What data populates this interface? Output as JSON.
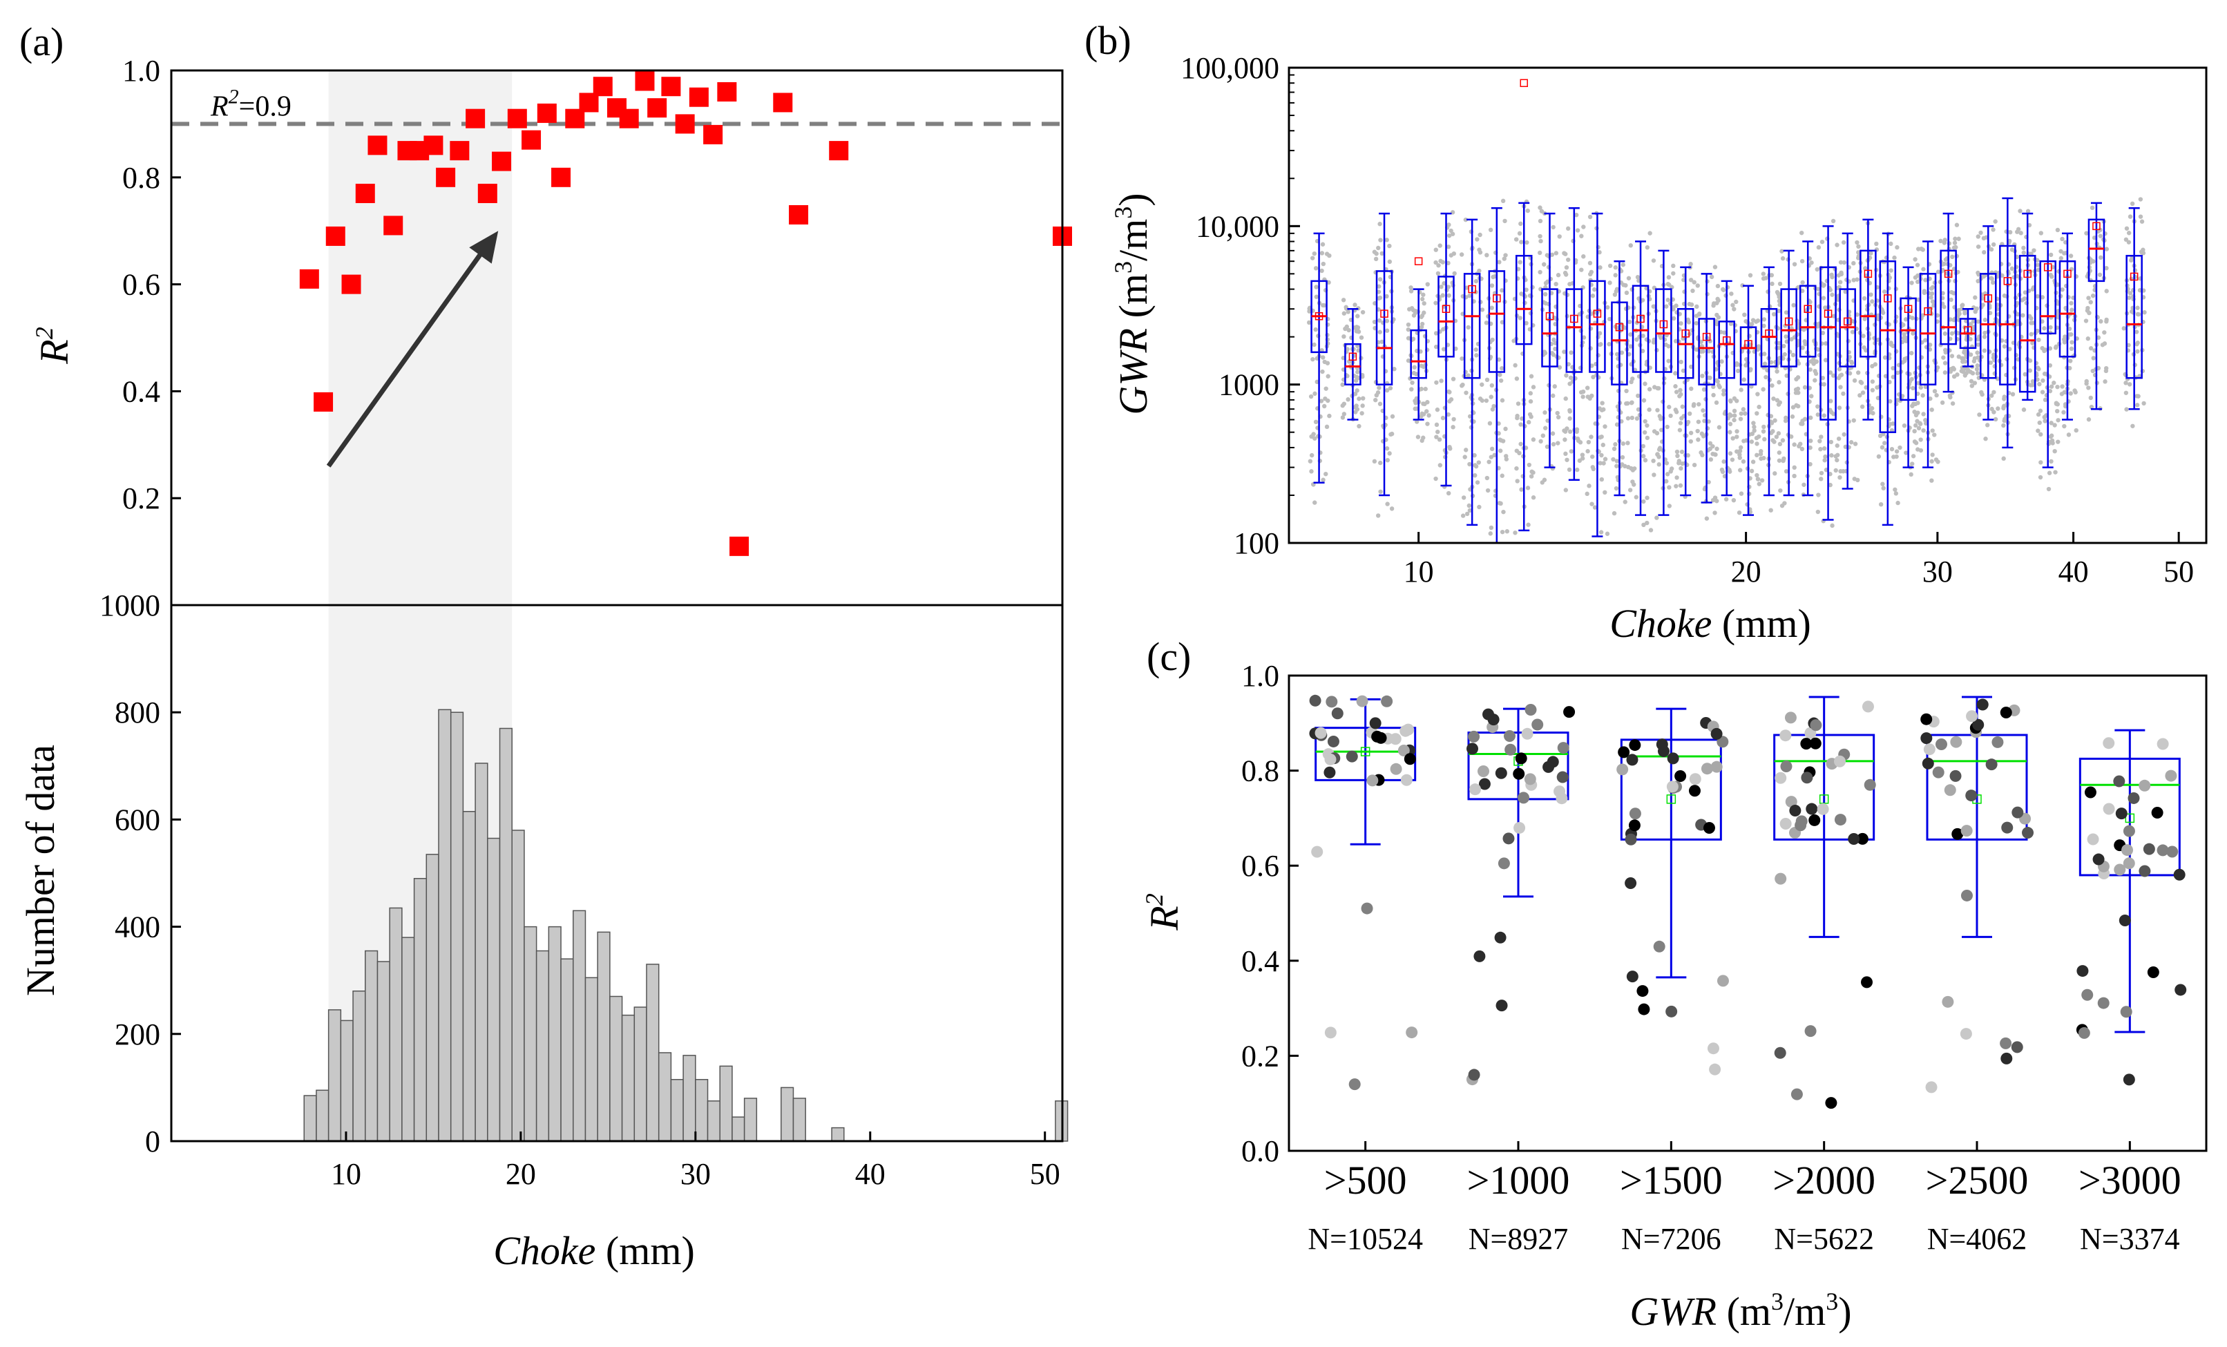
{
  "colors": {
    "scatter": "#ff0000",
    "shade": "#f2f2f2",
    "hist": "#c8c8c8",
    "box": "#0000e6",
    "median_b": "#ff0000",
    "median_c": "#00e000",
    "ref_line": "#808080",
    "arrow": "#333333"
  },
  "chart_data": [
    {
      "panel": "(a)",
      "type": "scatter",
      "ylabel": "R",
      "ylabel_sup": "2",
      "ylim": [
        0,
        1.0
      ],
      "yticks": [
        "0.2",
        "0.4",
        "0.6",
        "0.8",
        "1.0"
      ],
      "xlim": [
        0,
        51
      ],
      "reference_line": {
        "y": 0.9,
        "label": "R",
        "label_sup": "2",
        "label_tail": "=0.9"
      },
      "shaded_range": [
        9,
        19.5
      ],
      "arrow": {
        "from": [
          9,
          0.26
        ],
        "to": [
          19.5,
          0.7
        ]
      },
      "points": [
        [
          7.9,
          0.61
        ],
        [
          8.7,
          0.38
        ],
        [
          9.4,
          0.69
        ],
        [
          10.3,
          0.6
        ],
        [
          11.1,
          0.77
        ],
        [
          11.8,
          0.86
        ],
        [
          12.7,
          0.71
        ],
        [
          13.5,
          0.85
        ],
        [
          14.2,
          0.85
        ],
        [
          15.0,
          0.86
        ],
        [
          15.7,
          0.8
        ],
        [
          16.5,
          0.85
        ],
        [
          17.4,
          0.91
        ],
        [
          18.1,
          0.77
        ],
        [
          18.9,
          0.83
        ],
        [
          19.8,
          0.91
        ],
        [
          20.6,
          0.87
        ],
        [
          21.5,
          0.92
        ],
        [
          22.3,
          0.8
        ],
        [
          23.1,
          0.91
        ],
        [
          23.9,
          0.94
        ],
        [
          24.7,
          0.97
        ],
        [
          25.5,
          0.93
        ],
        [
          26.2,
          0.91
        ],
        [
          27.1,
          0.98
        ],
        [
          27.8,
          0.93
        ],
        [
          28.6,
          0.97
        ],
        [
          29.4,
          0.9
        ],
        [
          30.2,
          0.95
        ],
        [
          31.0,
          0.88
        ],
        [
          31.8,
          0.96
        ],
        [
          32.5,
          0.11
        ],
        [
          35.0,
          0.94
        ],
        [
          35.9,
          0.73
        ],
        [
          38.2,
          0.85
        ],
        [
          51,
          0.69
        ]
      ]
    },
    {
      "panel": "(a) lower",
      "type": "bar",
      "title": "",
      "ylabel": "Number of data",
      "xlabel": "Choke",
      "xlabel_unit": "(mm)",
      "ylim": [
        0,
        1000
      ],
      "yticks": [
        "0",
        "200",
        "400",
        "600",
        "800",
        "1000"
      ],
      "xlim": [
        0,
        51
      ],
      "xticks": [
        "10",
        "20",
        "30",
        "40",
        "50"
      ],
      "bin_width": 0.7,
      "bins": [
        [
          7.6,
          85
        ],
        [
          8.3,
          95
        ],
        [
          9.0,
          245
        ],
        [
          9.7,
          225
        ],
        [
          10.4,
          280
        ],
        [
          11.1,
          355
        ],
        [
          11.8,
          335
        ],
        [
          12.5,
          435
        ],
        [
          13.2,
          380
        ],
        [
          13.9,
          490
        ],
        [
          14.6,
          535
        ],
        [
          15.3,
          805
        ],
        [
          16.0,
          800
        ],
        [
          16.7,
          615
        ],
        [
          17.4,
          705
        ],
        [
          18.1,
          565
        ],
        [
          18.8,
          770
        ],
        [
          19.5,
          580
        ],
        [
          20.2,
          400
        ],
        [
          20.9,
          355
        ],
        [
          21.6,
          400
        ],
        [
          22.3,
          340
        ],
        [
          23.0,
          430
        ],
        [
          23.7,
          305
        ],
        [
          24.4,
          390
        ],
        [
          25.1,
          270
        ],
        [
          25.8,
          235
        ],
        [
          26.5,
          250
        ],
        [
          27.2,
          330
        ],
        [
          27.9,
          165
        ],
        [
          28.6,
          115
        ],
        [
          29.3,
          160
        ],
        [
          30.0,
          115
        ],
        [
          30.7,
          75
        ],
        [
          31.4,
          140
        ],
        [
          32.1,
          45
        ],
        [
          32.8,
          80
        ],
        [
          34.9,
          100
        ],
        [
          35.6,
          80
        ],
        [
          37.8,
          25
        ],
        [
          50.6,
          75
        ]
      ]
    },
    {
      "panel": "(b)",
      "type": "boxplot",
      "xlabel": "Choke",
      "xlabel_unit": "(mm)",
      "ylabel": "GWR",
      "ylabel_unit": "(m3/m3)",
      "yscale": "log",
      "ylim": [
        100,
        100000
      ],
      "yticks": [
        "100",
        "1000",
        "10,000",
        "100,000"
      ],
      "xscale": "log",
      "xlim": [
        7.6,
        53
      ],
      "xticks": [
        "10",
        "20",
        "30",
        "40",
        "50"
      ],
      "boxes": [
        {
          "x": 8.1,
          "q1": 1600,
          "med": 2700,
          "q3": 4500,
          "lo": 240,
          "hi": 9000,
          "mean": 2700
        },
        {
          "x": 8.7,
          "q1": 1000,
          "med": 1300,
          "q3": 1800,
          "lo": 600,
          "hi": 3000,
          "mean": 1500
        },
        {
          "x": 9.3,
          "q1": 1000,
          "med": 1700,
          "q3": 5200,
          "lo": 200,
          "hi": 12000,
          "mean": 2800
        },
        {
          "x": 10.0,
          "q1": 1100,
          "med": 1400,
          "q3": 2200,
          "lo": 600,
          "hi": 4000,
          "mean": 6000
        },
        {
          "x": 10.6,
          "q1": 1500,
          "med": 2500,
          "q3": 4800,
          "lo": 230,
          "hi": 12000,
          "mean": 3000
        },
        {
          "x": 11.2,
          "q1": 1100,
          "med": 2700,
          "q3": 5000,
          "lo": 130,
          "hi": 11000,
          "mean": 4000
        },
        {
          "x": 11.8,
          "q1": 1200,
          "med": 2800,
          "q3": 5200,
          "lo": 100,
          "hi": 13000,
          "mean": 3500
        },
        {
          "x": 12.5,
          "q1": 1800,
          "med": 3000,
          "q3": 6500,
          "lo": 120,
          "hi": 14000,
          "mean": 80000
        },
        {
          "x": 13.2,
          "q1": 1300,
          "med": 2100,
          "q3": 4000,
          "lo": 300,
          "hi": 12000,
          "mean": 2700
        },
        {
          "x": 13.9,
          "q1": 1200,
          "med": 2300,
          "q3": 4000,
          "lo": 250,
          "hi": 13000,
          "mean": 2600
        },
        {
          "x": 14.6,
          "q1": 1200,
          "med": 2400,
          "q3": 4500,
          "lo": 110,
          "hi": 12000,
          "mean": 2800
        },
        {
          "x": 15.3,
          "q1": 1000,
          "med": 1900,
          "q3": 3300,
          "lo": 200,
          "hi": 6000,
          "mean": 2300
        },
        {
          "x": 16.0,
          "q1": 1200,
          "med": 2200,
          "q3": 4200,
          "lo": 150,
          "hi": 8000,
          "mean": 2600
        },
        {
          "x": 16.8,
          "q1": 1200,
          "med": 2100,
          "q3": 4000,
          "lo": 150,
          "hi": 7000,
          "mean": 2400
        },
        {
          "x": 17.6,
          "q1": 1100,
          "med": 1800,
          "q3": 3000,
          "lo": 200,
          "hi": 5500,
          "mean": 2100
        },
        {
          "x": 18.4,
          "q1": 1000,
          "med": 1700,
          "q3": 2600,
          "lo": 180,
          "hi": 5000,
          "mean": 2000
        },
        {
          "x": 19.2,
          "q1": 1100,
          "med": 1800,
          "q3": 2500,
          "lo": 200,
          "hi": 4500,
          "mean": 1900
        },
        {
          "x": 20.1,
          "q1": 1000,
          "med": 1700,
          "q3": 2300,
          "lo": 150,
          "hi": 4200,
          "mean": 1800
        },
        {
          "x": 21.0,
          "q1": 1300,
          "med": 2000,
          "q3": 3000,
          "lo": 200,
          "hi": 5500,
          "mean": 2100
        },
        {
          "x": 21.9,
          "q1": 1300,
          "med": 2200,
          "q3": 4000,
          "lo": 200,
          "hi": 7000,
          "mean": 2500
        },
        {
          "x": 22.8,
          "q1": 1500,
          "med": 2300,
          "q3": 4200,
          "lo": 200,
          "hi": 8000,
          "mean": 3000
        },
        {
          "x": 23.8,
          "q1": 600,
          "med": 2300,
          "q3": 5500,
          "lo": 140,
          "hi": 10000,
          "mean": 2800
        },
        {
          "x": 24.8,
          "q1": 1300,
          "med": 2300,
          "q3": 4000,
          "lo": 220,
          "hi": 9000,
          "mean": 2500
        },
        {
          "x": 25.9,
          "q1": 1500,
          "med": 2700,
          "q3": 7000,
          "lo": 600,
          "hi": 11000,
          "mean": 5000
        },
        {
          "x": 27.0,
          "q1": 500,
          "med": 2200,
          "q3": 6000,
          "lo": 130,
          "hi": 9000,
          "mean": 3500
        },
        {
          "x": 28.2,
          "q1": 800,
          "med": 2200,
          "q3": 3500,
          "lo": 300,
          "hi": 5500,
          "mean": 3000
        },
        {
          "x": 29.4,
          "q1": 1000,
          "med": 2100,
          "q3": 5000,
          "lo": 300,
          "hi": 8000,
          "mean": 2900
        },
        {
          "x": 30.7,
          "q1": 1800,
          "med": 2300,
          "q3": 7000,
          "lo": 900,
          "hi": 12000,
          "mean": 5000
        },
        {
          "x": 32.0,
          "q1": 1700,
          "med": 2100,
          "q3": 2600,
          "lo": 1300,
          "hi": 3000,
          "mean": 2200
        },
        {
          "x": 33.4,
          "q1": 1100,
          "med": 2400,
          "q3": 5000,
          "lo": 600,
          "hi": 10000,
          "mean": 3500
        },
        {
          "x": 34.8,
          "q1": 1000,
          "med": 2400,
          "q3": 7500,
          "lo": 400,
          "hi": 15000,
          "mean": 4500
        },
        {
          "x": 36.3,
          "q1": 900,
          "med": 1900,
          "q3": 6500,
          "lo": 800,
          "hi": 12000,
          "mean": 5000
        },
        {
          "x": 37.9,
          "q1": 2100,
          "med": 2700,
          "q3": 6000,
          "lo": 300,
          "hi": 8000,
          "mean": 5500
        },
        {
          "x": 39.5,
          "q1": 1500,
          "med": 2800,
          "q3": 6000,
          "lo": 600,
          "hi": 9000,
          "mean": 5000
        },
        {
          "x": 42.0,
          "q1": 4500,
          "med": 7200,
          "q3": 11000,
          "lo": 700,
          "hi": 14000,
          "mean": 10000
        },
        {
          "x": 45.5,
          "q1": 1100,
          "med": 2400,
          "q3": 6500,
          "lo": 700,
          "hi": 13000,
          "mean": 4800
        }
      ]
    },
    {
      "panel": "(c)",
      "type": "boxplot",
      "xlabel": "GWR",
      "xlabel_unit": "(m3/m3)",
      "ylabel": "R",
      "ylabel_sup": "2",
      "ylim": [
        0,
        1.0
      ],
      "yticks": [
        "0.0",
        "0.2",
        "0.4",
        "0.6",
        "0.8",
        "1.0"
      ],
      "categories": [
        ">500",
        ">1000",
        ">1500",
        ">2000",
        ">2500",
        ">3000"
      ],
      "counts": [
        "N=10524",
        "N=8927",
        "N=7206",
        "N=5622",
        "N=4062",
        "N=3374"
      ],
      "boxes": [
        {
          "q1": 0.78,
          "med": 0.84,
          "q3": 0.89,
          "lo": 0.645,
          "hi": 0.95,
          "mean": 0.84
        },
        {
          "q1": 0.74,
          "med": 0.835,
          "q3": 0.88,
          "lo": 0.535,
          "hi": 0.93,
          "mean": 0.82
        },
        {
          "q1": 0.655,
          "med": 0.83,
          "q3": 0.865,
          "lo": 0.365,
          "hi": 0.93,
          "mean": 0.74
        },
        {
          "q1": 0.655,
          "med": 0.82,
          "q3": 0.875,
          "lo": 0.45,
          "hi": 0.955,
          "mean": 0.74
        },
        {
          "q1": 0.655,
          "med": 0.82,
          "q3": 0.875,
          "lo": 0.45,
          "hi": 0.955,
          "mean": 0.74
        },
        {
          "q1": 0.58,
          "med": 0.77,
          "q3": 0.825,
          "lo": 0.25,
          "hi": 0.885,
          "mean": 0.7
        }
      ]
    }
  ],
  "panel_labels": {
    "a": "(a)",
    "b": "(b)",
    "c": "(c)"
  }
}
